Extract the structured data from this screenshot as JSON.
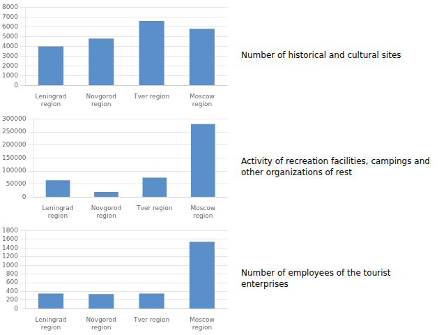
{
  "chart_data": [
    {
      "type": "bar",
      "title": "Number of historical and cultural sites",
      "categories": [
        "Leningrad\nregion",
        "Novgorod\nregion",
        "Tver region",
        "Moscow\nregion"
      ],
      "values": [
        4000,
        4800,
        6600,
        5800
      ],
      "color": "#5B8FC9",
      "ylim": [
        0,
        8000
      ],
      "yticks": [
        0,
        1000,
        2000,
        3000,
        4000,
        5000,
        6000,
        7000,
        8000
      ],
      "grid": true
    },
    {
      "type": "bar",
      "title": "Activity of recreation facilities, campings and\nother organizations of rest",
      "categories": [
        "Leningrad\nregion",
        "Novgorod\nregion",
        "Tver region",
        "Moscow\nregion"
      ],
      "values": [
        65000,
        20000,
        75000,
        280000
      ],
      "color": "#5B8FC9",
      "ylim": [
        0,
        300000
      ],
      "yticks": [
        0,
        50000,
        100000,
        150000,
        200000,
        250000,
        300000
      ],
      "grid": true
    },
    {
      "type": "bar",
      "title": "Number of employees of the tourist enterprises",
      "categories": [
        "Leningrad\nregion",
        "Novgorod\nregion",
        "Tver region",
        "Moscow\nregion"
      ],
      "values": [
        350,
        340,
        350,
        1540
      ],
      "color": "#5B8FC9",
      "ylim": [
        0,
        1800
      ],
      "yticks": [
        0,
        200,
        400,
        600,
        800,
        1000,
        1200,
        1400,
        1600,
        1800
      ],
      "grid": true
    }
  ]
}
